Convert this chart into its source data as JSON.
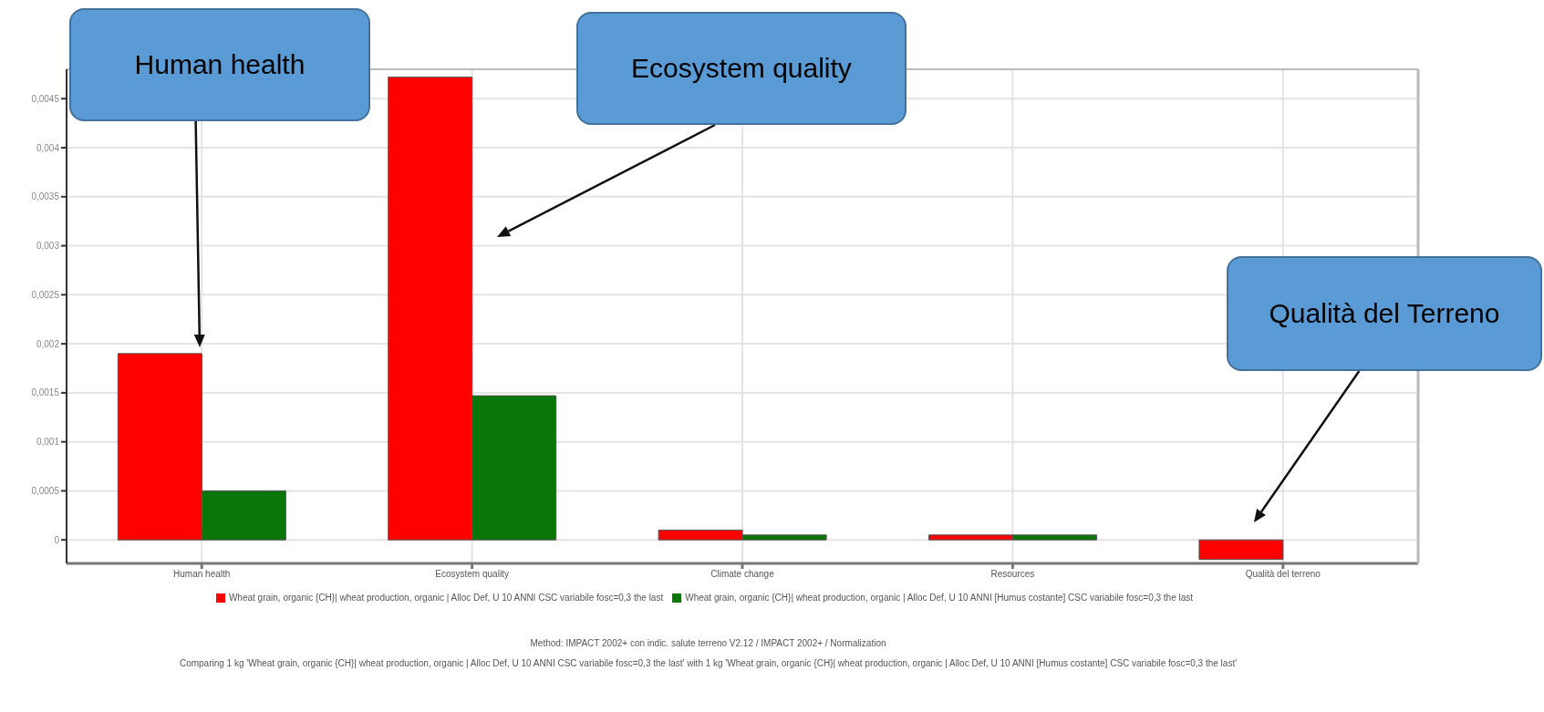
{
  "chart_data": {
    "type": "bar",
    "categories": [
      "Human health",
      "Ecosystem quality",
      "Climate change",
      "Resources",
      "Qualità del terreno"
    ],
    "series": [
      {
        "name": "Wheat grain, organic {CH}| wheat production, organic | Alloc Def, U 10 ANNI CSC variabile fosc=0,3 the last",
        "color": "#ff0000",
        "values": [
          0.0019,
          0.00472,
          0.0001,
          5e-05,
          -0.0002
        ]
      },
      {
        "name": "Wheat grain, organic {CH}| wheat production, organic | Alloc Def, U 10 ANNI [Humus costante] CSC variabile fosc=0,3 the last",
        "color": "#0a760a",
        "values": [
          0.0005,
          0.00147,
          5e-05,
          5e-05,
          0
        ]
      }
    ],
    "ylim": [
      -0.00024,
      0.0048
    ],
    "yticks": [
      {
        "value": 0,
        "label": "0"
      },
      {
        "value": 0.0005,
        "label": "0,0005"
      },
      {
        "value": 0.001,
        "label": "0,001"
      },
      {
        "value": 0.0015,
        "label": "0,0015"
      },
      {
        "value": 0.002,
        "label": "0,002"
      },
      {
        "value": 0.0025,
        "label": "0,0025"
      },
      {
        "value": 0.003,
        "label": "0,003"
      },
      {
        "value": 0.0035,
        "label": "0,0035"
      },
      {
        "value": 0.004,
        "label": "0,004"
      },
      {
        "value": 0.0045,
        "label": "0,0045"
      }
    ],
    "grid": true,
    "legend": "bottom",
    "annotations": [
      "Human health",
      "Ecosystem quality",
      "Qualità del Terreno",
      "Method: IMPACT 2002+ con indic. salute terreno V2.12 / IMPACT 2002+ / Normalization",
      "Comparing 1 kg 'Wheat grain, organic {CH}| wheat production, organic | Alloc Def, U  10 ANNI CSC variabile fosc=0,3 the last' with 1 kg 'Wheat grain, organic {CH}| wheat production, organic | Alloc Def, U 10 ANNI [Humus costante] CSC variabile fosc=0,3 the last'"
    ]
  }
}
